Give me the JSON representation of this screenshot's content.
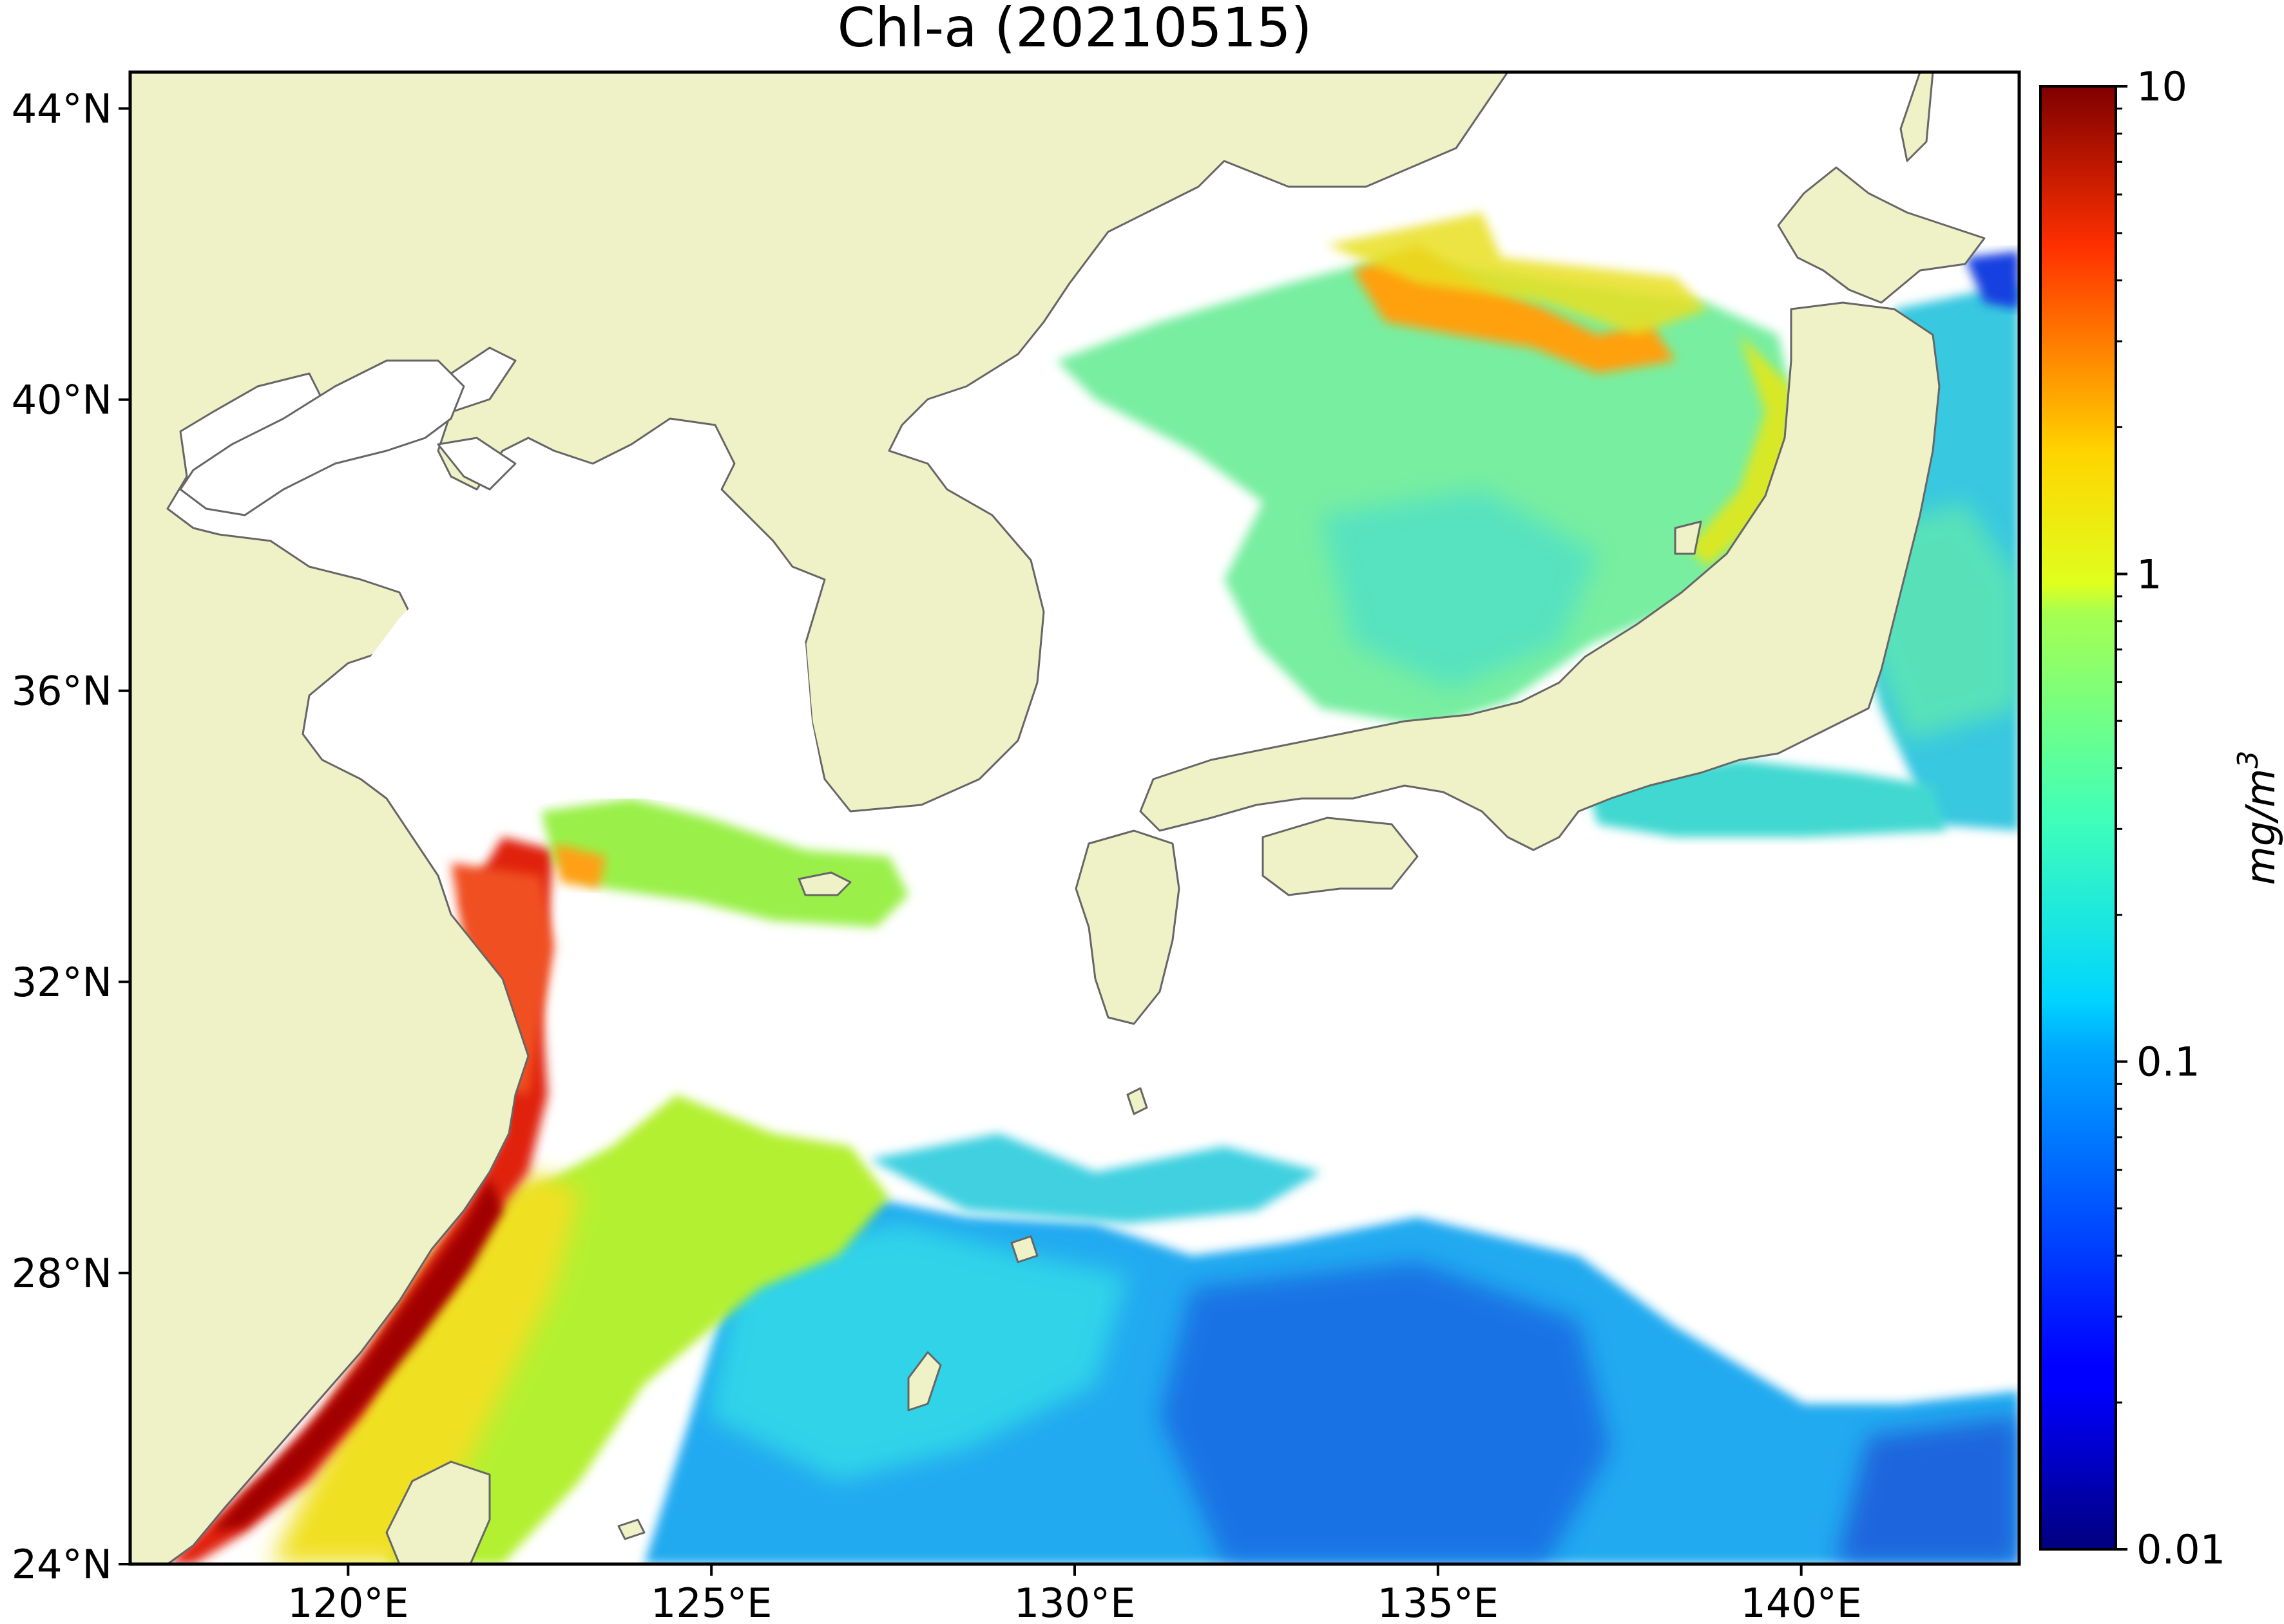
{
  "title": "Chl-a (20210515)",
  "map": {
    "lon_range": [
      117,
      143
    ],
    "lat_range": [
      24,
      44.5
    ],
    "land_color": "#eff2c7",
    "no_data_color": "#ffffff",
    "coast_color": "#666666",
    "lon_ticks": [
      {
        "value": 120,
        "label": "120°E"
      },
      {
        "value": 125,
        "label": "125°E"
      },
      {
        "value": 130,
        "label": "130°E"
      },
      {
        "value": 135,
        "label": "135°E"
      },
      {
        "value": 140,
        "label": "140°E"
      }
    ],
    "lat_ticks": [
      {
        "value": 44,
        "label": "44°N"
      },
      {
        "value": 40,
        "label": "40°N"
      },
      {
        "value": 36,
        "label": "36°N"
      },
      {
        "value": 32,
        "label": "32°N"
      },
      {
        "value": 28,
        "label": "28°N"
      },
      {
        "value": 24,
        "label": "24°N"
      }
    ]
  },
  "colorbar": {
    "label": "mg/m",
    "label_superscript": "3",
    "scale": "log",
    "colormap": "jet",
    "range": [
      0.01,
      10
    ],
    "ticks": [
      {
        "value": 10,
        "label": "10"
      },
      {
        "value": 1,
        "label": "1"
      },
      {
        "value": 0.1,
        "label": "0.1"
      },
      {
        "value": 0.01,
        "label": "0.01"
      }
    ]
  }
}
